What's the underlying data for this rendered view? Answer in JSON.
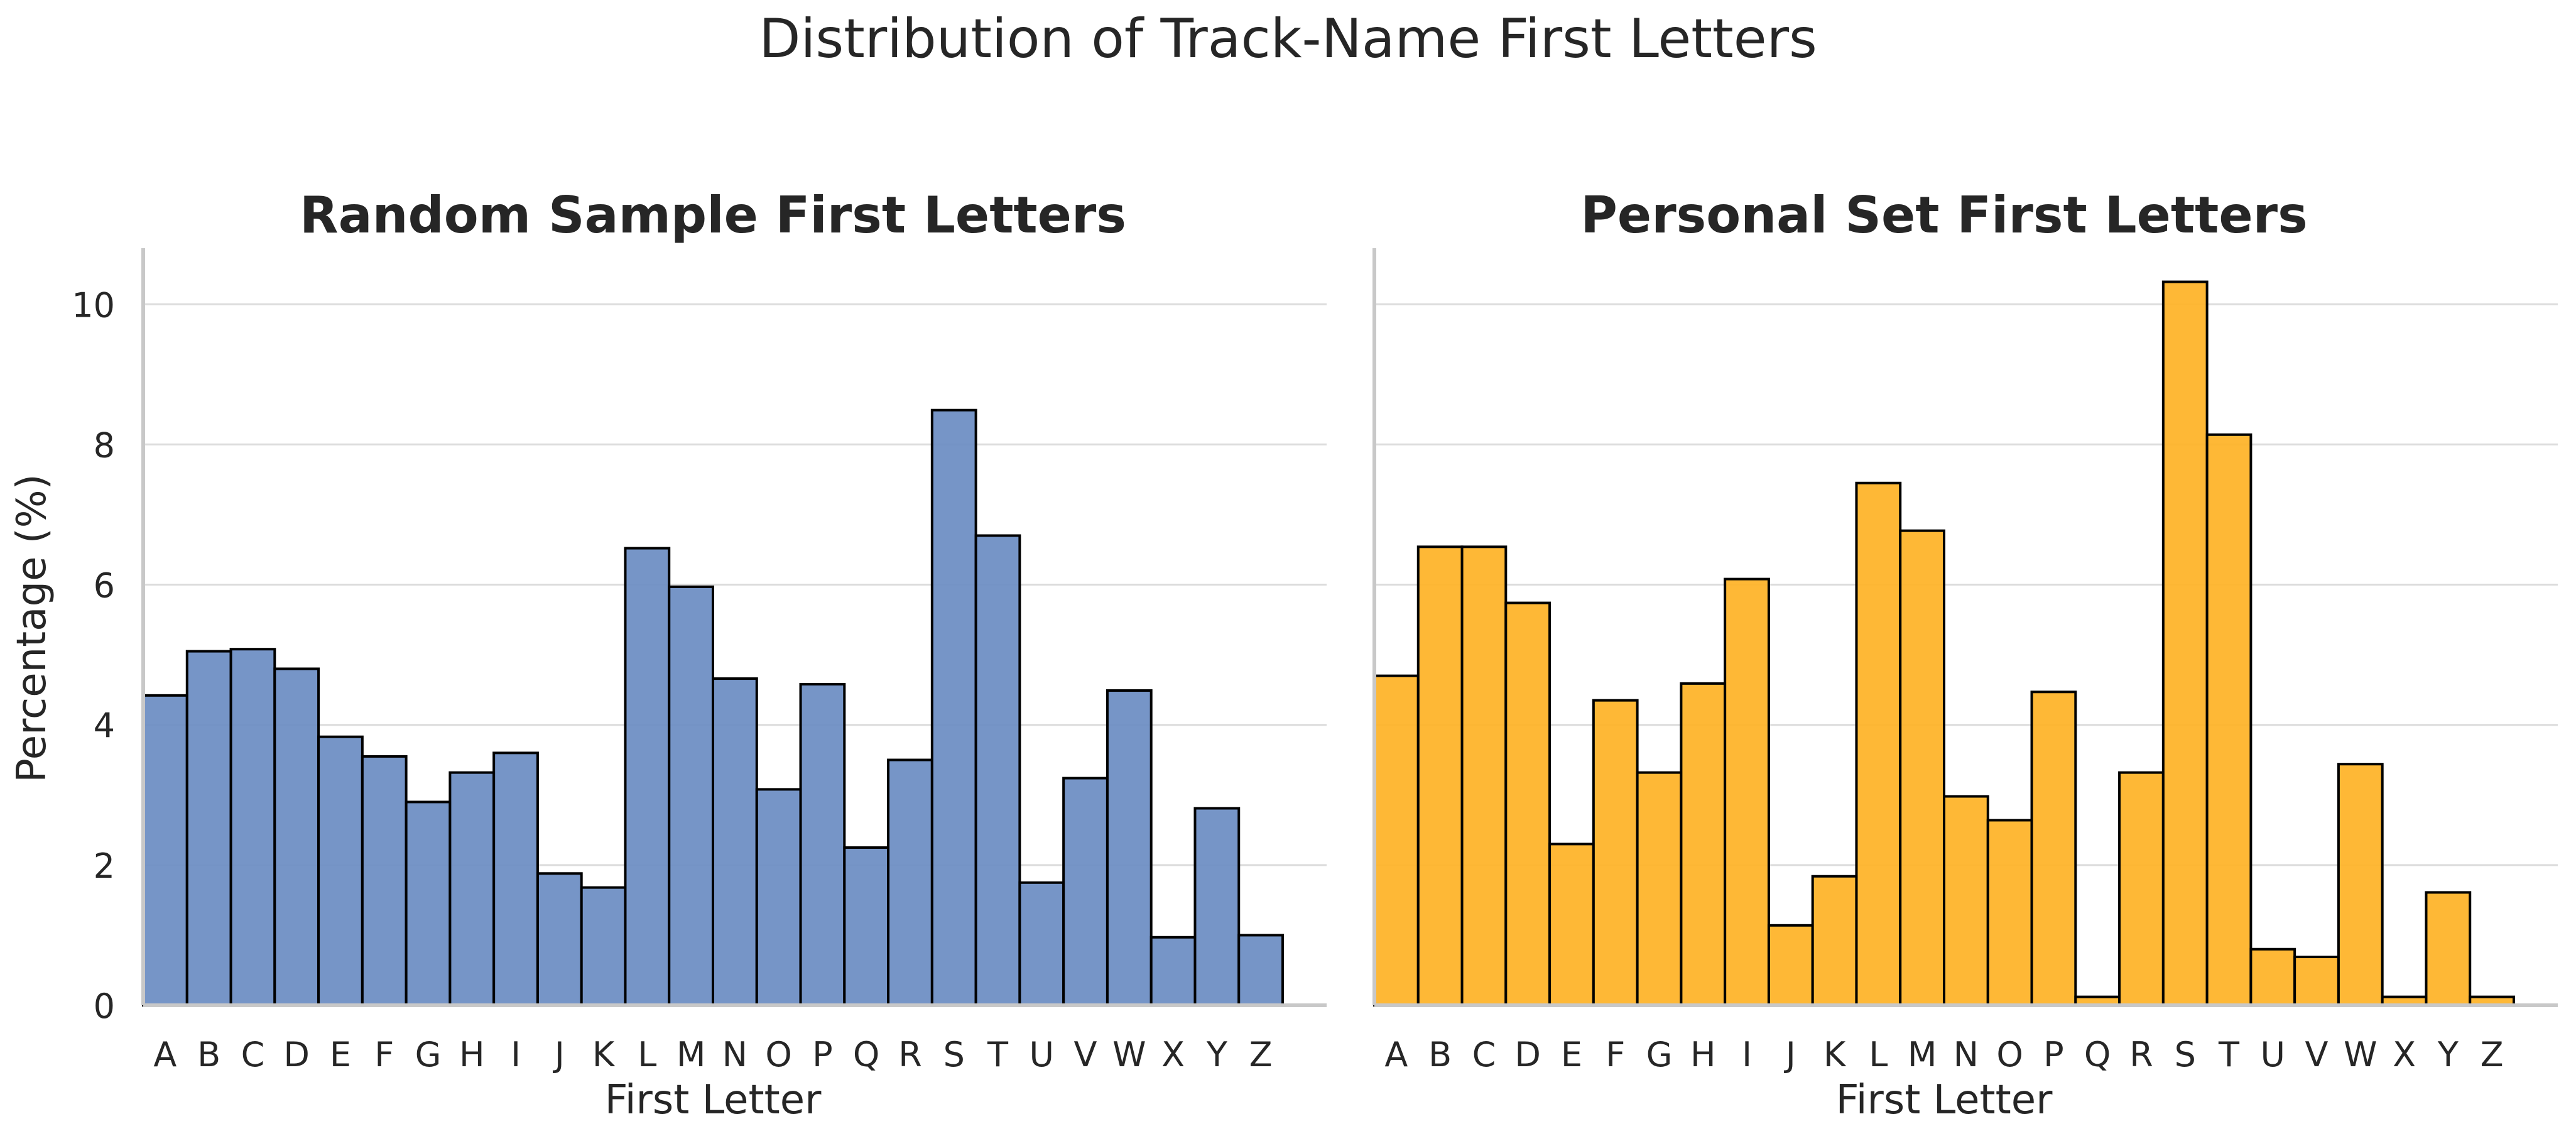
{
  "figure": {
    "title": "Distribution of Track-Name First Letters",
    "ylabel": "Percentage (%)"
  },
  "chart_data": [
    {
      "type": "bar",
      "title": "Random Sample First Letters",
      "xlabel": "First Letter",
      "ylabel": "Percentage (%)",
      "categories": [
        "A",
        "B",
        "C",
        "D",
        "E",
        "F",
        "G",
        "H",
        "I",
        "J",
        "K",
        "L",
        "M",
        "N",
        "O",
        "P",
        "Q",
        "R",
        "S",
        "T",
        "U",
        "V",
        "W",
        "X",
        "Y",
        "Z"
      ],
      "values": [
        4.42,
        5.05,
        5.08,
        4.8,
        3.83,
        3.55,
        2.9,
        3.32,
        3.6,
        1.88,
        1.68,
        6.52,
        5.97,
        4.66,
        3.08,
        4.58,
        2.25,
        3.5,
        8.49,
        6.7,
        1.75,
        3.24,
        4.49,
        0.97,
        2.81,
        1.0
      ],
      "ylim": [
        0,
        10.8
      ],
      "yticks": [
        0,
        2,
        4,
        6,
        8,
        10
      ],
      "grid": "horizontal",
      "color": "#6a8cc2",
      "edge_color": "#000000"
    },
    {
      "type": "bar",
      "title": "Personal Set First Letters",
      "xlabel": "First Letter",
      "ylabel": "",
      "categories": [
        "A",
        "B",
        "C",
        "D",
        "E",
        "F",
        "G",
        "H",
        "I",
        "J",
        "K",
        "L",
        "M",
        "N",
        "O",
        "P",
        "Q",
        "R",
        "S",
        "T",
        "U",
        "V",
        "W",
        "X",
        "Y",
        "Z"
      ],
      "values": [
        4.7,
        6.54,
        6.54,
        5.74,
        2.3,
        4.35,
        3.32,
        4.59,
        6.08,
        1.14,
        1.84,
        7.45,
        6.77,
        2.98,
        2.64,
        4.47,
        0.12,
        3.32,
        10.32,
        8.14,
        0.8,
        0.69,
        3.44,
        0.12,
        1.61,
        0.12
      ],
      "ylim": [
        0,
        10.8
      ],
      "yticks": [
        0,
        2,
        4,
        6,
        8,
        10
      ],
      "grid": "horizontal",
      "color": "#feb225",
      "edge_color": "#000000"
    }
  ]
}
